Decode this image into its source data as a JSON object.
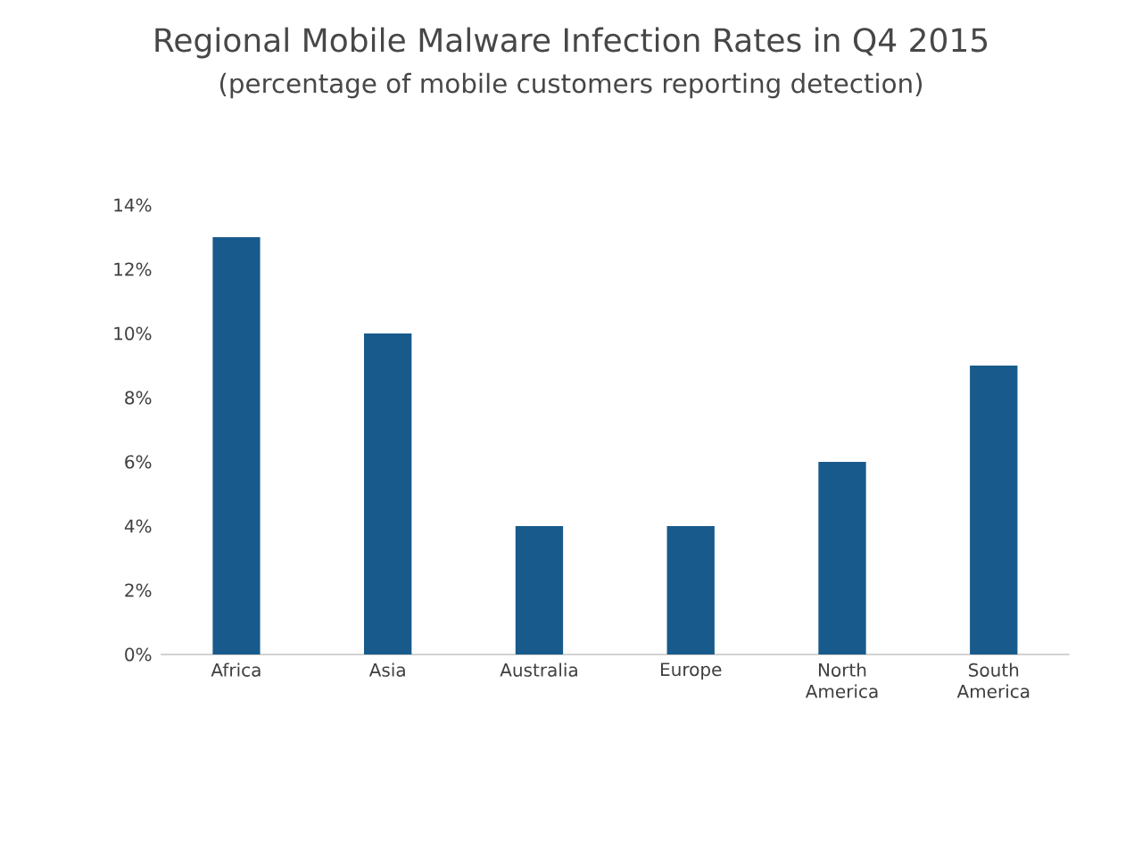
{
  "chart_data": {
    "type": "bar",
    "title": "Regional Mobile Malware Infection Rates in Q4 2015",
    "subtitle": "(percentage of mobile customers reporting detection)",
    "categories": [
      "Africa",
      "Asia",
      "Australia",
      "Europe",
      "North America",
      "South America"
    ],
    "values": [
      13,
      10,
      4,
      4,
      6,
      9
    ],
    "color": "#185a8c",
    "ylim": [
      0,
      14
    ],
    "yticks": [
      {
        "value": 0,
        "label": "0%"
      },
      {
        "value": 2,
        "label": "2%"
      },
      {
        "value": 4,
        "label": "4%"
      },
      {
        "value": 6,
        "label": "6%"
      },
      {
        "value": 8,
        "label": "8%"
      },
      {
        "value": 10,
        "label": "10%"
      },
      {
        "value": 12,
        "label": "12%"
      },
      {
        "value": 14,
        "label": "14%"
      }
    ],
    "grid": false
  }
}
